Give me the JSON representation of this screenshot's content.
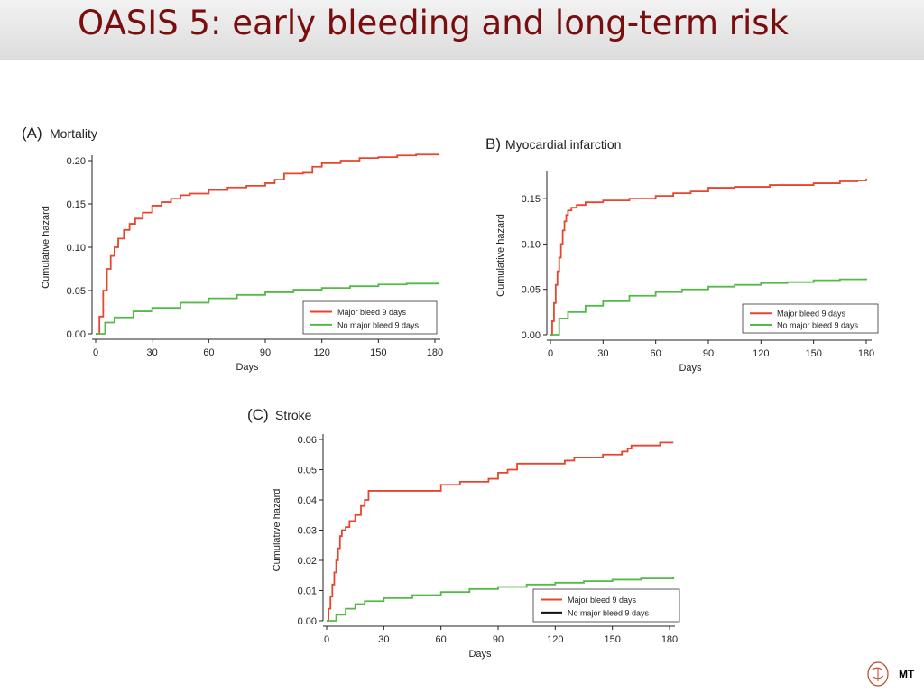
{
  "slide": {
    "title": "OASIS 5: early bleeding and long-term risk",
    "footer_text": "MT"
  },
  "chart_data": [
    {
      "type": "line",
      "panel_letter": "(A)",
      "panel_title": "Mortality",
      "xlabel": "Days",
      "ylabel": "Cumulative hazard",
      "xlim": [
        0,
        180
      ],
      "ylim": [
        0,
        0.2
      ],
      "xticks": [
        0,
        30,
        60,
        90,
        120,
        150,
        180
      ],
      "yticks": [
        0,
        0.05,
        0.1,
        0.15,
        0.2
      ],
      "ytick_labels": [
        "0.00",
        "0.05",
        "0.10",
        "0.15",
        "0.20"
      ],
      "step": true,
      "legend_position": "bottom-right",
      "series": [
        {
          "name": "Major bleed 9 days",
          "color": "#e8452e",
          "x": [
            0,
            2,
            4,
            6,
            8,
            10,
            12,
            15,
            18,
            21,
            25,
            30,
            35,
            40,
            45,
            50,
            60,
            70,
            80,
            90,
            95,
            100,
            110,
            115,
            120,
            130,
            140,
            150,
            160,
            170,
            182
          ],
          "y": [
            0,
            0.02,
            0.05,
            0.075,
            0.09,
            0.1,
            0.11,
            0.12,
            0.127,
            0.133,
            0.14,
            0.148,
            0.152,
            0.156,
            0.16,
            0.162,
            0.166,
            0.169,
            0.171,
            0.174,
            0.178,
            0.185,
            0.186,
            0.193,
            0.197,
            0.2,
            0.203,
            0.204,
            0.206,
            0.207,
            0.207
          ]
        },
        {
          "name": "No major bleed 9 days",
          "color": "#55b94a",
          "x": [
            0,
            5,
            10,
            20,
            30,
            45,
            60,
            75,
            90,
            105,
            120,
            135,
            150,
            165,
            182
          ],
          "y": [
            0,
            0.013,
            0.019,
            0.026,
            0.03,
            0.036,
            0.041,
            0.045,
            0.048,
            0.051,
            0.053,
            0.055,
            0.057,
            0.058,
            0.06
          ]
        }
      ]
    },
    {
      "type": "line",
      "panel_letter": "B)",
      "panel_title": "Myocardial infarction",
      "xlabel": "Days",
      "ylabel": "Cumulative hazard",
      "xlim": [
        0,
        180
      ],
      "ylim": [
        0,
        0.175
      ],
      "xticks": [
        0,
        30,
        60,
        90,
        120,
        150,
        180
      ],
      "yticks": [
        0,
        0.05,
        0.1,
        0.15
      ],
      "ytick_labels": [
        "0.00",
        "0.05",
        "0.10",
        "0.15"
      ],
      "step": true,
      "legend_position": "bottom-right",
      "series": [
        {
          "name": "Major bleed 9 days",
          "color": "#e8452e",
          "x": [
            0,
            1,
            2,
            3,
            4,
            5,
            6,
            7,
            8,
            9,
            10,
            12,
            15,
            20,
            30,
            45,
            60,
            70,
            80,
            90,
            105,
            125,
            150,
            165,
            175,
            180
          ],
          "y": [
            0,
            0.015,
            0.035,
            0.055,
            0.07,
            0.085,
            0.1,
            0.115,
            0.125,
            0.132,
            0.137,
            0.14,
            0.143,
            0.146,
            0.148,
            0.15,
            0.153,
            0.156,
            0.158,
            0.162,
            0.163,
            0.165,
            0.167,
            0.169,
            0.17,
            0.172
          ]
        },
        {
          "name": "No major bleed 9 days",
          "color": "#55b94a",
          "x": [
            0,
            5,
            10,
            20,
            30,
            45,
            60,
            75,
            90,
            105,
            120,
            135,
            150,
            165,
            180
          ],
          "y": [
            0,
            0.018,
            0.025,
            0.032,
            0.037,
            0.043,
            0.047,
            0.05,
            0.053,
            0.055,
            0.057,
            0.058,
            0.06,
            0.061,
            0.062
          ]
        }
      ]
    },
    {
      "type": "line",
      "panel_letter": "(C)",
      "panel_title": "Stroke",
      "xlabel": "Days",
      "ylabel": "Cumulative hazard",
      "xlim": [
        0,
        180
      ],
      "ylim": [
        0,
        0.06
      ],
      "xticks": [
        0,
        30,
        60,
        90,
        120,
        150,
        180
      ],
      "yticks": [
        0,
        0.01,
        0.02,
        0.03,
        0.04,
        0.05,
        0.06
      ],
      "ytick_labels": [
        "0.00",
        "0.01",
        "0.02",
        "0.03",
        "0.04",
        "0.05",
        "0.06"
      ],
      "step": true,
      "legend_position": "bottom-right",
      "series": [
        {
          "name": "Major bleed 9 days",
          "color": "#e8452e",
          "legend_color": "#e8452e",
          "x": [
            0,
            1,
            2,
            3,
            4,
            5,
            6,
            7,
            8,
            10,
            12,
            15,
            18,
            20,
            22,
            50,
            60,
            70,
            85,
            90,
            95,
            100,
            115,
            125,
            130,
            145,
            155,
            158,
            160,
            175,
            182
          ],
          "y": [
            0,
            0.004,
            0.008,
            0.012,
            0.016,
            0.02,
            0.024,
            0.028,
            0.03,
            0.031,
            0.033,
            0.035,
            0.038,
            0.04,
            0.043,
            0.043,
            0.045,
            0.046,
            0.047,
            0.049,
            0.05,
            0.052,
            0.052,
            0.053,
            0.054,
            0.055,
            0.056,
            0.057,
            0.058,
            0.059,
            0.059
          ]
        },
        {
          "name": "No major bleed 9 days",
          "color": "#55b94a",
          "legend_color": "#111111",
          "x": [
            0,
            5,
            10,
            15,
            20,
            30,
            45,
            60,
            75,
            90,
            105,
            120,
            135,
            150,
            165,
            182
          ],
          "y": [
            0,
            0.002,
            0.004,
            0.0055,
            0.0065,
            0.0075,
            0.0085,
            0.0095,
            0.0105,
            0.0112,
            0.012,
            0.0126,
            0.0131,
            0.0136,
            0.014,
            0.0145
          ]
        }
      ]
    }
  ]
}
